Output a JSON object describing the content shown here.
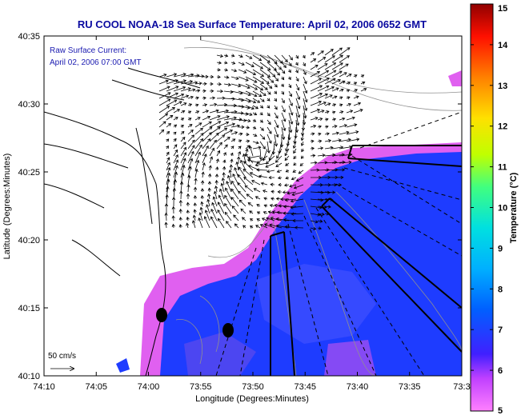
{
  "title": "RU COOL  NOAA-18  Sea Surface Temperature:  April 02, 2006 0652 GMT",
  "notes": {
    "current_label": "Raw Surface Current:",
    "current_time": "April 02, 2006 07:00 GMT",
    "scale_label": "50 cm/s"
  },
  "axes": {
    "xlabel": "Longitude (Degrees:Minutes)",
    "ylabel": "Latitude (Degrees:Minutes)",
    "x_ticks": [
      "74:10",
      "74:05",
      "74:00",
      "73:55",
      "73:50",
      "73:45",
      "73:40",
      "73:35",
      "73:3"
    ],
    "y_ticks": [
      "40:35",
      "40:30",
      "40:25",
      "40:20",
      "40:15",
      "40:10"
    ]
  },
  "colorbar": {
    "label": "Temperature (°C)",
    "min": 5,
    "max": 15,
    "ticks": [
      "15",
      "14",
      "13",
      "12",
      "11",
      "10",
      "9",
      "8",
      "7",
      "6",
      "5"
    ]
  },
  "colors": {
    "title": "#0a0aa0",
    "cold_water": "#1e3cff",
    "warm_front": "#ff40ff",
    "coastline": "#000000",
    "bathymetry": "#909090"
  }
}
